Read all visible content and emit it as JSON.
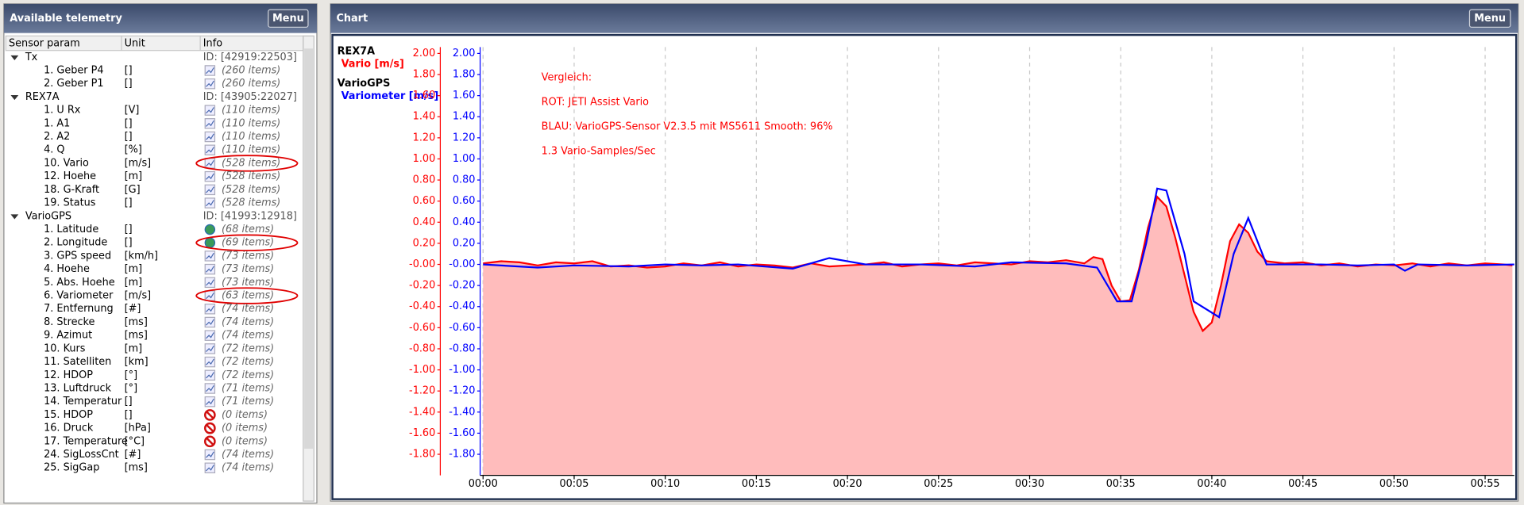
{
  "left_panel": {
    "title": "Available telemetry",
    "menu": "Menu",
    "columns": [
      "Sensor param",
      "Unit",
      "Info"
    ],
    "groups": [
      {
        "name": "Tx",
        "id": "ID: [42919:22503]",
        "items": [
          {
            "label": "1. Geber P4",
            "unit": "[]",
            "info": "(260 items)",
            "icon": "chart"
          },
          {
            "label": "2. Geber P1",
            "unit": "[]",
            "info": "(260 items)",
            "icon": "chart"
          }
        ]
      },
      {
        "name": "REX7A",
        "id": "ID: [43905:22027]",
        "items": [
          {
            "label": "1. U Rx",
            "unit": "[V]",
            "info": "(110 items)",
            "icon": "chart"
          },
          {
            "label": "1. A1",
            "unit": "[]",
            "info": "(110 items)",
            "icon": "chart"
          },
          {
            "label": "2. A2",
            "unit": "[]",
            "info": "(110 items)",
            "icon": "chart"
          },
          {
            "label": "4. Q",
            "unit": "[%]",
            "info": "(110 items)",
            "icon": "chart"
          },
          {
            "label": "10. Vario",
            "unit": "[m/s]",
            "info": "(528 items)",
            "icon": "chart",
            "highlighted": true
          },
          {
            "label": "12. Hoehe",
            "unit": "[m]",
            "info": "(528 items)",
            "icon": "chart"
          },
          {
            "label": "18. G-Kraft",
            "unit": "[G]",
            "info": "(528 items)",
            "icon": "chart"
          },
          {
            "label": "19. Status",
            "unit": "[]",
            "info": "(528 items)",
            "icon": "chart"
          }
        ]
      },
      {
        "name": "VarioGPS",
        "id": "ID: [41993:12918]",
        "items": [
          {
            "label": "1. Latitude",
            "unit": "[]",
            "info": "(68 items)",
            "icon": "globe"
          },
          {
            "label": "2. Longitude",
            "unit": "[]",
            "info": "(69 items)",
            "icon": "globe",
            "highlighted": true
          },
          {
            "label": "3. GPS speed",
            "unit": "[km/h]",
            "info": "(73 items)",
            "icon": "chart"
          },
          {
            "label": "4. Hoehe",
            "unit": "[m]",
            "info": "(73 items)",
            "icon": "chart"
          },
          {
            "label": "5. Abs. Hoehe",
            "unit": "[m]",
            "info": "(73 items)",
            "icon": "chart"
          },
          {
            "label": "6. Variometer",
            "unit": "[m/s]",
            "info": "(63 items)",
            "icon": "chart",
            "highlighted": true
          },
          {
            "label": "7. Entfernung",
            "unit": "[#]",
            "info": "(74 items)",
            "icon": "chart"
          },
          {
            "label": "8. Strecke",
            "unit": "[ms]",
            "info": "(74 items)",
            "icon": "chart"
          },
          {
            "label": "9. Azimut",
            "unit": "[ms]",
            "info": "(74 items)",
            "icon": "chart"
          },
          {
            "label": "10. Kurs",
            "unit": "[m]",
            "info": "(72 items)",
            "icon": "chart"
          },
          {
            "label": "11. Satelliten",
            "unit": "[km]",
            "info": "(72 items)",
            "icon": "chart"
          },
          {
            "label": "12. HDOP",
            "unit": "[°]",
            "info": "(72 items)",
            "icon": "chart"
          },
          {
            "label": "13. Luftdruck",
            "unit": "[°]",
            "info": "(71 items)",
            "icon": "chart"
          },
          {
            "label": "14. Temperatur",
            "unit": "[]",
            "info": "(71 items)",
            "icon": "chart"
          },
          {
            "label": "15. HDOP",
            "unit": "[]",
            "info": "(0 items)",
            "icon": "forbidden"
          },
          {
            "label": "16. Druck",
            "unit": "[hPa]",
            "info": "(0 items)",
            "icon": "forbidden"
          },
          {
            "label": "17. Temperature",
            "unit": "[°C]",
            "info": "(0 items)",
            "icon": "forbidden"
          },
          {
            "label": "24. SigLossCnt",
            "unit": "[#]",
            "info": "(74 items)",
            "icon": "chart"
          },
          {
            "label": "25. SigGap",
            "unit": "[ms]",
            "info": "(74 items)",
            "icon": "chart"
          }
        ]
      }
    ]
  },
  "right_panel": {
    "title": "Chart",
    "menu": "Menu"
  },
  "chart_data": {
    "type": "line",
    "annotations": [
      "Vergleich:",
      "ROT: JETI Assist Vario",
      "BLAU: VarioGPS-Sensor V2.3.5 mit MS5611 Smooth: 96%",
      "1.3 Vario-Samples/Sec"
    ],
    "xlim": [
      0,
      56.6
    ],
    "xticks": [
      {
        "value": 0,
        "label": "00:00"
      },
      {
        "value": 5,
        "label": "00:05"
      },
      {
        "value": 10,
        "label": "00:10"
      },
      {
        "value": 15,
        "label": "00:15"
      },
      {
        "value": 20,
        "label": "00:20"
      },
      {
        "value": 25,
        "label": "00:25"
      },
      {
        "value": 30,
        "label": "00:30"
      },
      {
        "value": 35,
        "label": "00:35"
      },
      {
        "value": 40,
        "label": "00:40"
      },
      {
        "value": 45,
        "label": "00:45"
      },
      {
        "value": 50,
        "label": "00:50"
      },
      {
        "value": 55,
        "label": "00:55"
      }
    ],
    "grid": "x",
    "ylim": [
      -2,
      2.06
    ],
    "yticks": [
      {
        "value": 2,
        "label": "2.00"
      },
      {
        "value": 1.8,
        "label": "1.80"
      },
      {
        "value": 1.6,
        "label": "1.60"
      },
      {
        "value": 1.4,
        "label": "1.40"
      },
      {
        "value": 1.2,
        "label": "1.20"
      },
      {
        "value": 1,
        "label": "1.00"
      },
      {
        "value": 0.8,
        "label": "0.80"
      },
      {
        "value": 0.6,
        "label": "0.60"
      },
      {
        "value": 0.4,
        "label": "0.40"
      },
      {
        "value": 0.2,
        "label": "0.20"
      },
      {
        "value": 0,
        "label": "-0.00"
      },
      {
        "value": -0.2,
        "label": "-0.20"
      },
      {
        "value": -0.4,
        "label": "-0.40"
      },
      {
        "value": -0.6,
        "label": "-0.60"
      },
      {
        "value": -0.8,
        "label": "-0.80"
      },
      {
        "value": -1,
        "label": "-1.00"
      },
      {
        "value": -1.2,
        "label": "-1.20"
      },
      {
        "value": -1.4,
        "label": "-1.40"
      },
      {
        "value": -1.6,
        "label": "-1.60"
      },
      {
        "value": -1.8,
        "label": "-1.80"
      }
    ],
    "y2lim": [
      -2,
      2.06
    ],
    "y2ticks": [
      {
        "value": 2,
        "label": "2.00"
      },
      {
        "value": 1.8,
        "label": "1.80"
      },
      {
        "value": 1.6,
        "label": "1.60"
      },
      {
        "value": 1.4,
        "label": "1.40"
      },
      {
        "value": 1.2,
        "label": "1.20"
      },
      {
        "value": 1,
        "label": "1.00"
      },
      {
        "value": 0.8,
        "label": "0.80"
      },
      {
        "value": 0.6,
        "label": "0.60"
      },
      {
        "value": 0.4,
        "label": "0.40"
      },
      {
        "value": 0.2,
        "label": "0.20"
      },
      {
        "value": 0,
        "label": "-0.00"
      },
      {
        "value": -0.2,
        "label": "-0.20"
      },
      {
        "value": -0.4,
        "label": "-0.40"
      },
      {
        "value": -0.6,
        "label": "-0.60"
      },
      {
        "value": -0.8,
        "label": "-0.80"
      },
      {
        "value": -1,
        "label": "-1.00"
      },
      {
        "value": -1.2,
        "label": "-1.20"
      },
      {
        "value": -1.4,
        "label": "-1.40"
      },
      {
        "value": -1.6,
        "label": "-1.60"
      },
      {
        "value": -1.8,
        "label": "-1.80"
      }
    ],
    "series": [
      {
        "group": "REX7A",
        "name": "Vario [m/s]",
        "color": "#ff0000",
        "fill": "#ffbcbc",
        "x": [
          0,
          1,
          2,
          3,
          4,
          5,
          6,
          7,
          8,
          9,
          10,
          11,
          12,
          13,
          14,
          15,
          16,
          17,
          18,
          19,
          20,
          21,
          22,
          23,
          24,
          25,
          26,
          27,
          28,
          29,
          30,
          31,
          32,
          33,
          33.5,
          34,
          34.5,
          35,
          35.5,
          36,
          36.5,
          37,
          37.5,
          38,
          38.5,
          39,
          39.5,
          40,
          40.5,
          41,
          41.5,
          42,
          42.5,
          43,
          44,
          45,
          46,
          47,
          48,
          49,
          50,
          51,
          52,
          53,
          54,
          55,
          56,
          56.5
        ],
        "values": [
          0.01,
          0.03,
          0.02,
          -0.01,
          0.02,
          0.01,
          0.03,
          -0.02,
          -0.01,
          -0.03,
          -0.02,
          0.01,
          -0.01,
          0.02,
          -0.02,
          0,
          -0.01,
          -0.03,
          0.01,
          -0.02,
          -0.01,
          0,
          0.02,
          -0.02,
          0,
          0.01,
          -0.01,
          0.02,
          0.01,
          0,
          0.03,
          0.02,
          0.04,
          0.01,
          0.07,
          0.05,
          -0.2,
          -0.35,
          -0.34,
          -0.05,
          0.35,
          0.64,
          0.55,
          0.25,
          -0.1,
          -0.45,
          -0.63,
          -0.55,
          -0.2,
          0.22,
          0.38,
          0.3,
          0.12,
          0.03,
          0.01,
          0.02,
          -0.01,
          0.01,
          -0.02,
          0,
          -0.01,
          0.01,
          -0.02,
          0.01,
          -0.01,
          0.01,
          0,
          -0.01
        ]
      },
      {
        "group": "VarioGPS",
        "name": "Variometer [m/s]",
        "color": "#0000ff",
        "axis": "y2",
        "x": [
          0,
          3,
          5,
          8,
          10,
          12,
          14,
          17,
          19,
          21,
          24,
          27,
          29,
          32,
          33.7,
          34.8,
          35.6,
          36.4,
          37,
          37.5,
          38.5,
          39,
          40.4,
          41.2,
          42,
          43,
          46,
          48,
          50,
          50.6,
          51.3,
          54,
          56.6
        ],
        "values": [
          0,
          -0.03,
          -0.01,
          -0.02,
          0,
          -0.01,
          0,
          -0.04,
          0.06,
          0,
          0,
          -0.02,
          0.02,
          0.01,
          -0.03,
          -0.35,
          -0.35,
          0.2,
          0.72,
          0.7,
          0.1,
          -0.35,
          -0.5,
          0.1,
          0.44,
          0,
          0,
          -0.01,
          0,
          -0.06,
          0,
          -0.01,
          0
        ]
      }
    ]
  }
}
